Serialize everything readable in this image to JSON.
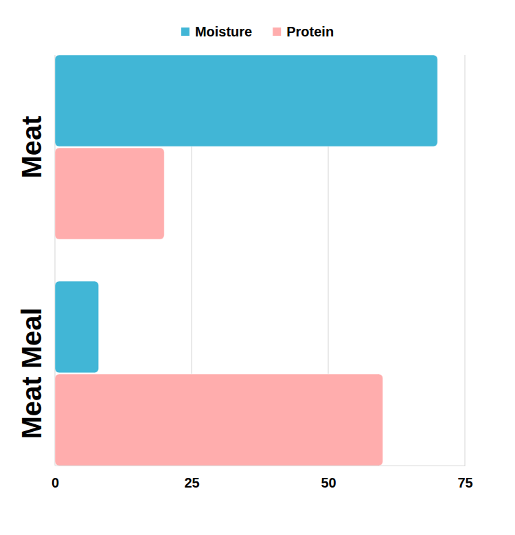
{
  "chart_data": {
    "type": "bar",
    "orientation": "horizontal",
    "categories": [
      "Meat",
      "Meat Meal"
    ],
    "series": [
      {
        "name": "Moisture",
        "color": "#41b6d6",
        "values": [
          70,
          8
        ]
      },
      {
        "name": "Protein",
        "color": "#ffadad",
        "values": [
          20,
          60
        ]
      }
    ],
    "xlim": [
      0,
      75
    ],
    "xticks": [
      0,
      25,
      50,
      75
    ],
    "grid": true,
    "legend": "top"
  }
}
